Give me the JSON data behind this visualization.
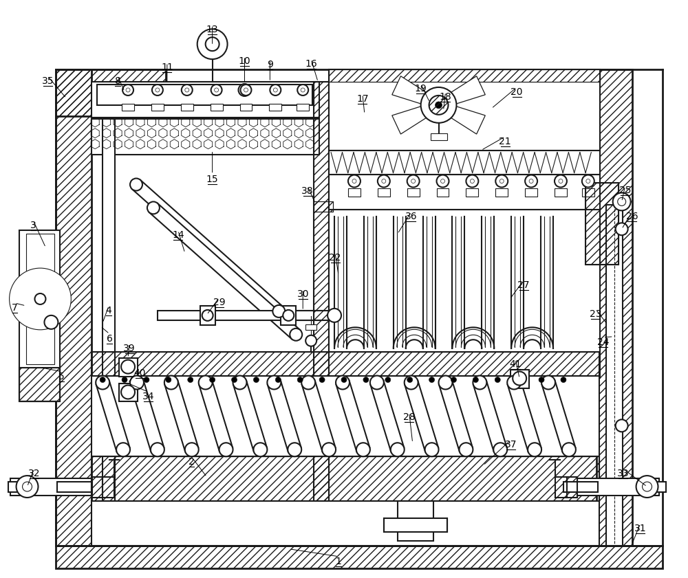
{
  "figsize": [
    10.0,
    8.41
  ],
  "dpi": 100,
  "bg_color": "#ffffff",
  "line_color": "#1a1a1a",
  "lw_main": 1.5,
  "lw_thin": 0.8,
  "lw_thick": 2.0,
  "label_fs": 10
}
